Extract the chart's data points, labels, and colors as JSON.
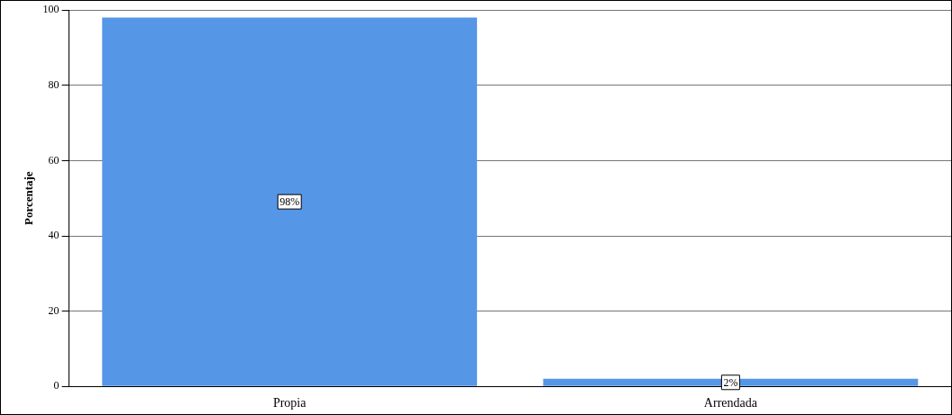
{
  "chart_data": {
    "type": "bar",
    "ylabel": "Porcentaje",
    "categories": [
      "Propia",
      "Arrendada"
    ],
    "values": [
      98,
      2
    ],
    "value_labels": [
      "98%",
      "2%"
    ],
    "color": "#5596e6",
    "ylim": [
      0,
      100
    ],
    "yticks": [
      0,
      20,
      40,
      60,
      80,
      100
    ],
    "grid": "y",
    "legend": false
  }
}
